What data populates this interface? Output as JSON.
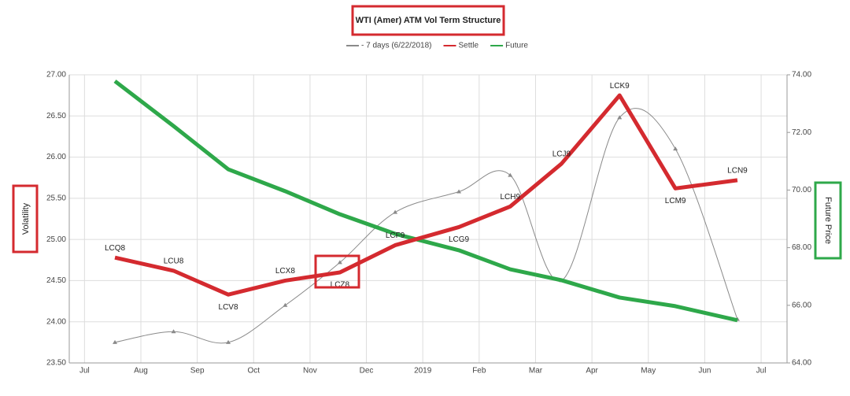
{
  "chart_data": {
    "type": "line",
    "title": "WTI (Amer) ATM Vol Term Structure",
    "y_label": "Volatility",
    "y2_label": "Future Price",
    "grid": true,
    "xlim": [
      -0.27,
      12.46
    ],
    "xticks": [
      {
        "value": 0,
        "label": "Jul"
      },
      {
        "value": 1,
        "label": "Aug"
      },
      {
        "value": 2,
        "label": "Sep"
      },
      {
        "value": 3,
        "label": "Oct"
      },
      {
        "value": 4,
        "label": "Nov"
      },
      {
        "value": 5,
        "label": "Dec"
      },
      {
        "value": 6,
        "label": "2019"
      },
      {
        "value": 7,
        "label": "Feb"
      },
      {
        "value": 8,
        "label": "Mar"
      },
      {
        "value": 9,
        "label": "Apr"
      },
      {
        "value": 10,
        "label": "May"
      },
      {
        "value": 11,
        "label": "Jun"
      },
      {
        "value": 12,
        "label": "Jul"
      }
    ],
    "ylim": [
      23.5,
      27
    ],
    "yticks": [
      {
        "value": 23.5,
        "label": "23.50"
      },
      {
        "value": 24,
        "label": "24.00"
      },
      {
        "value": 24.5,
        "label": "24.50"
      },
      {
        "value": 25,
        "label": "25.00"
      },
      {
        "value": 25.5,
        "label": "25.50"
      },
      {
        "value": 26,
        "label": "26.00"
      },
      {
        "value": 26.5,
        "label": "26.50"
      },
      {
        "value": 27,
        "label": "27.00"
      }
    ],
    "y2lim": [
      64,
      74
    ],
    "y2ticks": [
      {
        "value": 64,
        "label": "64.00"
      },
      {
        "value": 66,
        "label": "66.00"
      },
      {
        "value": 68,
        "label": "68.00"
      },
      {
        "value": 70,
        "label": "70.00"
      },
      {
        "value": 72,
        "label": "72.00"
      },
      {
        "value": 74,
        "label": "74.00"
      }
    ],
    "x": [
      0.54,
      1.58,
      2.55,
      3.56,
      4.53,
      5.51,
      6.64,
      7.55,
      8.46,
      9.49,
      10.48,
      11.58
    ],
    "series": [
      {
        "name": "- 7 days (6/22/2018)",
        "color": "#8a8a8a",
        "values": [
          23.75,
          23.88,
          23.75,
          24.2,
          24.72,
          25.33,
          25.58,
          25.78,
          24.5,
          26.48,
          26.1,
          24.03
        ]
      },
      {
        "name": "Settle",
        "color": "#d42a2f",
        "values": [
          24.78,
          24.62,
          24.33,
          24.5,
          24.6,
          24.93,
          25.15,
          25.4,
          25.92,
          26.75,
          25.62,
          25.72
        ],
        "labels": [
          "LCQ8",
          "LCU8",
          "LCV8",
          "LCX8",
          "LCZ8",
          "LCF9",
          "LCG9",
          "LCH9",
          "LCJ9",
          "LCK9",
          "LCM9",
          "LCN9"
        ]
      },
      {
        "name": "Future",
        "color": "#2ea84a",
        "axis": "y2",
        "values": [
          73.78,
          72.22,
          70.72,
          69.96,
          69.16,
          68.48,
          67.91,
          67.25,
          66.87,
          66.27,
          65.97,
          65.48
        ]
      }
    ]
  }
}
